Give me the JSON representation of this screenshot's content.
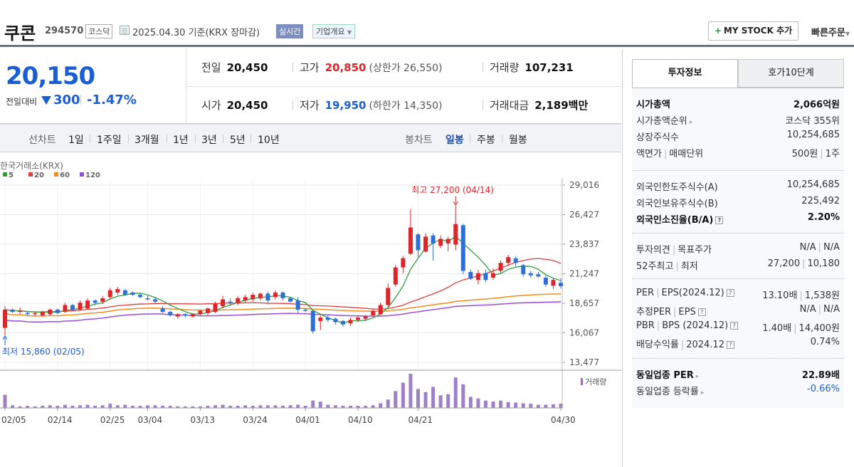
{
  "header": {
    "title": "쿠콘",
    "code": "294570",
    "market": "코스닥",
    "date": "2025.04.30  기준(KRX 장마감)",
    "realtime": "실시간",
    "corp_overview": "기업개요",
    "my_stock": "MY STOCK 추가",
    "quick_order": "빠른주문"
  },
  "price": {
    "current": "20,150",
    "change_label": "전일대비",
    "change": "300",
    "change_pct": "-1.47%",
    "direction": "down"
  },
  "stats": {
    "prev_label": "전일",
    "prev": "20,450",
    "high_label": "고가",
    "high": "20,850",
    "upper_limit": "(상한가 26,550)",
    "volume_label": "거래량",
    "volume": "107,231",
    "open_label": "시가",
    "open": "20,450",
    "low_label": "저가",
    "low": "19,950",
    "lower_limit": "(하한가 14,350)",
    "value_label": "거래대금",
    "value": "2,189",
    "value_unit": "백만"
  },
  "chart_tabs": {
    "line_label": "선차트",
    "ranges": [
      "1일",
      "1주일",
      "3개월",
      "1년",
      "3년",
      "5년",
      "10년"
    ],
    "candle_label": "봉차트",
    "candles": [
      "일봉",
      "주봉",
      "월봉"
    ],
    "active_candle": "일봉"
  },
  "chart_data": {
    "type": "candlestick",
    "source": "한국거래소(KRX)",
    "ma_legend": [
      {
        "name": "5",
        "color": "#2e9e3f"
      },
      {
        "name": "20",
        "color": "#e23b3b"
      },
      {
        "name": "60",
        "color": "#f08c1e"
      },
      {
        "name": "120",
        "color": "#9a4fd1"
      }
    ],
    "y_ticks": [
      "29,016",
      "26,427",
      "23,837",
      "21,247",
      "18,657",
      "16,067",
      "13,477"
    ],
    "y_range": [
      13477,
      29016
    ],
    "x_ticks": [
      "02/05",
      "02/14",
      "02/25",
      "03/04",
      "03/13",
      "03/24",
      "04/01",
      "04/10",
      "04/21",
      "04/30"
    ],
    "high_annotation": "최고 27,200 (04/14)",
    "low_annotation": "최저 15,860 (02/05)",
    "volume_label": "거래량",
    "up_color": "#e0242a",
    "down_color": "#2f6fd8",
    "candles": [
      {
        "o": 16500,
        "h": 18400,
        "l": 15860,
        "c": 18100
      },
      {
        "o": 18100,
        "h": 18200,
        "l": 17800,
        "c": 17900
      },
      {
        "o": 17900,
        "h": 18300,
        "l": 17700,
        "c": 18000
      },
      {
        "o": 17800,
        "h": 17900,
        "l": 17600,
        "c": 17700
      },
      {
        "o": 17700,
        "h": 17900,
        "l": 17500,
        "c": 17800
      },
      {
        "o": 17600,
        "h": 18000,
        "l": 17500,
        "c": 17900
      },
      {
        "o": 17700,
        "h": 18200,
        "l": 17600,
        "c": 18100
      },
      {
        "o": 18100,
        "h": 18200,
        "l": 17700,
        "c": 17800
      },
      {
        "o": 17900,
        "h": 18700,
        "l": 17800,
        "c": 18500
      },
      {
        "o": 18500,
        "h": 18600,
        "l": 18000,
        "c": 18100
      },
      {
        "o": 18100,
        "h": 18900,
        "l": 18000,
        "c": 18700
      },
      {
        "o": 18200,
        "h": 19100,
        "l": 18100,
        "c": 18900
      },
      {
        "o": 18900,
        "h": 19000,
        "l": 18500,
        "c": 18700
      },
      {
        "o": 18800,
        "h": 19300,
        "l": 18600,
        "c": 19100
      },
      {
        "o": 19200,
        "h": 20000,
        "l": 19000,
        "c": 19800
      },
      {
        "o": 19600,
        "h": 20100,
        "l": 19400,
        "c": 19900
      },
      {
        "o": 19800,
        "h": 19900,
        "l": 19300,
        "c": 19400
      },
      {
        "o": 19600,
        "h": 19700,
        "l": 19300,
        "c": 19400
      },
      {
        "o": 19400,
        "h": 19500,
        "l": 19100,
        "c": 19200
      },
      {
        "o": 19100,
        "h": 19300,
        "l": 18900,
        "c": 19000
      },
      {
        "o": 19000,
        "h": 19200,
        "l": 18700,
        "c": 18800
      },
      {
        "o": 18200,
        "h": 18400,
        "l": 17800,
        "c": 17900
      },
      {
        "o": 17900,
        "h": 18000,
        "l": 17500,
        "c": 17600
      },
      {
        "o": 17500,
        "h": 17800,
        "l": 17300,
        "c": 17700
      },
      {
        "o": 17700,
        "h": 17800,
        "l": 17400,
        "c": 17600
      },
      {
        "o": 17500,
        "h": 17800,
        "l": 17400,
        "c": 17700
      },
      {
        "o": 17700,
        "h": 18100,
        "l": 17600,
        "c": 18000
      },
      {
        "o": 17800,
        "h": 18300,
        "l": 17600,
        "c": 18200
      },
      {
        "o": 17900,
        "h": 18800,
        "l": 17800,
        "c": 18600
      },
      {
        "o": 18400,
        "h": 19300,
        "l": 18200,
        "c": 19000
      },
      {
        "o": 18800,
        "h": 19100,
        "l": 18500,
        "c": 18700
      },
      {
        "o": 18700,
        "h": 19300,
        "l": 18500,
        "c": 19100
      },
      {
        "o": 18900,
        "h": 19400,
        "l": 18700,
        "c": 19200
      },
      {
        "o": 19000,
        "h": 19600,
        "l": 18800,
        "c": 19400
      },
      {
        "o": 19100,
        "h": 19600,
        "l": 18900,
        "c": 19500
      },
      {
        "o": 19500,
        "h": 19700,
        "l": 18700,
        "c": 18900
      },
      {
        "o": 19200,
        "h": 19800,
        "l": 19000,
        "c": 19600
      },
      {
        "o": 19600,
        "h": 19700,
        "l": 18900,
        "c": 19100
      },
      {
        "o": 19100,
        "h": 19200,
        "l": 18700,
        "c": 18800
      },
      {
        "o": 18900,
        "h": 19200,
        "l": 17800,
        "c": 18100
      },
      {
        "o": 18100,
        "h": 18200,
        "l": 17900,
        "c": 18000
      },
      {
        "o": 18000,
        "h": 18100,
        "l": 16000,
        "c": 16200
      },
      {
        "o": 17100,
        "h": 17600,
        "l": 16300,
        "c": 17400
      },
      {
        "o": 17400,
        "h": 17600,
        "l": 17000,
        "c": 17200
      },
      {
        "o": 17300,
        "h": 17400,
        "l": 16800,
        "c": 17000
      },
      {
        "o": 17100,
        "h": 17200,
        "l": 16600,
        "c": 16800
      },
      {
        "o": 16900,
        "h": 17400,
        "l": 16700,
        "c": 17200
      },
      {
        "o": 17200,
        "h": 17500,
        "l": 17000,
        "c": 17400
      },
      {
        "o": 17300,
        "h": 17600,
        "l": 17100,
        "c": 17500
      },
      {
        "o": 17600,
        "h": 18200,
        "l": 17500,
        "c": 18000
      },
      {
        "o": 17700,
        "h": 18700,
        "l": 17600,
        "c": 18500
      },
      {
        "o": 18500,
        "h": 20400,
        "l": 18300,
        "c": 20000
      },
      {
        "o": 20300,
        "h": 22000,
        "l": 20100,
        "c": 21800
      },
      {
        "o": 21800,
        "h": 22800,
        "l": 21300,
        "c": 22600
      },
      {
        "o": 23000,
        "h": 26900,
        "l": 22900,
        "c": 25300
      },
      {
        "o": 24700,
        "h": 24800,
        "l": 22700,
        "c": 23300
      },
      {
        "o": 23200,
        "h": 24800,
        "l": 23100,
        "c": 24500
      },
      {
        "o": 24600,
        "h": 24800,
        "l": 22400,
        "c": 23900
      },
      {
        "o": 23700,
        "h": 24600,
        "l": 23500,
        "c": 24300
      },
      {
        "o": 23900,
        "h": 24500,
        "l": 23200,
        "c": 24300
      },
      {
        "o": 23800,
        "h": 27200,
        "l": 23300,
        "c": 25600
      },
      {
        "o": 25500,
        "h": 25600,
        "l": 21200,
        "c": 21500
      },
      {
        "o": 21400,
        "h": 21600,
        "l": 20700,
        "c": 20800
      },
      {
        "o": 20700,
        "h": 21600,
        "l": 20300,
        "c": 21300
      },
      {
        "o": 21300,
        "h": 21600,
        "l": 20500,
        "c": 20700
      },
      {
        "o": 20900,
        "h": 21700,
        "l": 20700,
        "c": 21300
      },
      {
        "o": 21500,
        "h": 22400,
        "l": 21300,
        "c": 22200
      },
      {
        "o": 22200,
        "h": 22900,
        "l": 21900,
        "c": 22700
      },
      {
        "o": 22600,
        "h": 22800,
        "l": 21900,
        "c": 22200
      },
      {
        "o": 22000,
        "h": 22100,
        "l": 21000,
        "c": 21200
      },
      {
        "o": 21300,
        "h": 21500,
        "l": 20900,
        "c": 21100
      },
      {
        "o": 21200,
        "h": 21400,
        "l": 20900,
        "c": 21000
      },
      {
        "o": 20900,
        "h": 21100,
        "l": 20100,
        "c": 20300
      },
      {
        "o": 20200,
        "h": 20900,
        "l": 19900,
        "c": 20700
      },
      {
        "o": 20450,
        "h": 20850,
        "l": 19950,
        "c": 20150
      }
    ],
    "volumes": [
      25,
      5,
      3,
      4,
      3,
      4,
      5,
      4,
      6,
      4,
      5,
      6,
      4,
      5,
      8,
      5,
      6,
      4,
      4,
      5,
      5,
      4,
      4,
      3,
      3,
      3,
      3,
      4,
      5,
      6,
      4,
      4,
      5,
      4,
      5,
      5,
      5,
      4,
      5,
      6,
      4,
      14,
      12,
      6,
      5,
      4,
      4,
      4,
      4,
      5,
      9,
      16,
      32,
      48,
      65,
      36,
      30,
      40,
      24,
      26,
      58,
      45,
      21,
      18,
      14,
      12,
      14,
      11,
      10,
      9,
      8,
      6,
      6,
      7,
      8
    ]
  },
  "invest_panel": {
    "tab_active": "투자정보",
    "tab_other": "호가10단계",
    "rows1": [
      {
        "k": "시가총액",
        "v": "2,066억원",
        "bold": true
      },
      {
        "k": "시가총액순위",
        "v": "코스닥 355위",
        "caret": true
      },
      {
        "k": "상장주식수",
        "v": "10,254,685"
      },
      {
        "k": "액면가",
        "k2": "매매단위",
        "v": "500원",
        "v2": "1주"
      }
    ],
    "rows2": [
      {
        "k": "외국인한도주식수(A)",
        "v": "10,254,685"
      },
      {
        "k": "외국인보유주식수(B)",
        "v": "225,492"
      },
      {
        "k": "외국인소진율(B/A)",
        "v": "2.20%",
        "bold": true,
        "q": true
      }
    ],
    "rows3": [
      {
        "k": "투자의견",
        "k2": "목표주가",
        "v": "N/A",
        "v2": "N/A"
      },
      {
        "k": "52주최고",
        "k2": "최저",
        "v": "27,200",
        "v2": "10,180"
      }
    ],
    "rows4": [
      {
        "k": "PER",
        "k2": "EPS(2024.12)",
        "v": "13.10배",
        "v2": "1,538원",
        "q": true
      },
      {
        "k": "추정PER",
        "k2": "EPS",
        "v": "N/A",
        "v2": "N/A",
        "q": true
      },
      {
        "k": "PBR",
        "k2": "BPS (2024.12)",
        "v": "1.40배",
        "v2": "14,400원",
        "q": true
      },
      {
        "k": "배당수익률",
        "k2": "2024.12",
        "v": "0.74%",
        "q": true
      }
    ],
    "rows5": [
      {
        "k": "동일업종 PER",
        "v": "22.89배",
        "bold": true,
        "caret": true
      },
      {
        "k": "동일업종 등락률",
        "v": "-0.66%",
        "neg": true,
        "caret": true
      }
    ]
  }
}
